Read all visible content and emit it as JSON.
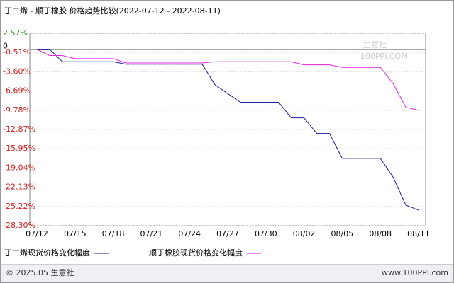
{
  "chart_data": {
    "type": "line",
    "title": "丁二烯 - 顺丁橡胶 价格趋势比较(2022-07-12 - 2022-08-11)",
    "categories": [
      "07/12",
      null,
      null,
      "07/15",
      null,
      null,
      "07/18",
      null,
      null,
      "07/21",
      null,
      null,
      "07/24",
      null,
      null,
      "07/27",
      null,
      null,
      "07/30",
      null,
      null,
      "08/02",
      null,
      null,
      "08/05",
      null,
      null,
      "08/08",
      null,
      null,
      "08/11"
    ],
    "series": [
      {
        "name": "丁二烯现货价格变化幅度",
        "color": "#1a1a9c",
        "values": [
          0,
          0,
          -2.0,
          -2.0,
          -2.0,
          -2.0,
          -2.0,
          -2.4,
          -2.4,
          -2.4,
          -2.4,
          -2.4,
          -2.4,
          -2.4,
          -5.7,
          -7.1,
          -8.5,
          -8.5,
          -8.5,
          -8.5,
          -11.0,
          -11.0,
          -13.5,
          -13.5,
          -17.5,
          -17.5,
          -17.5,
          -17.5,
          -20.5,
          -25.0,
          -25.8
        ]
      },
      {
        "name": "顺丁橡胶现货价格变化幅度",
        "color": "#e020e0",
        "values": [
          0,
          -1.0,
          -1.0,
          -1.5,
          -1.5,
          -1.5,
          -1.5,
          -2.2,
          -2.2,
          -2.2,
          -2.2,
          -2.2,
          -2.2,
          -2.2,
          -2.0,
          -2.0,
          -2.0,
          -2.0,
          -2.0,
          -2.0,
          -2.0,
          -2.5,
          -2.5,
          -2.5,
          -2.9,
          -2.9,
          -2.9,
          -2.9,
          -5.5,
          -9.3,
          -9.8
        ]
      }
    ],
    "ylim": [
      -28.3,
      2.57
    ],
    "yticks": [
      {
        "value": 2.57,
        "label": "2.57%"
      },
      {
        "value": -0.51,
        "label": "-0.51%"
      },
      {
        "value": -3.6,
        "label": "-3.60%"
      },
      {
        "value": -6.69,
        "label": "-6.69%"
      },
      {
        "value": -9.78,
        "label": "-9.78%"
      },
      {
        "value": -12.87,
        "label": "-12.87%"
      },
      {
        "value": -15.95,
        "label": "-15.95%"
      },
      {
        "value": -19.04,
        "label": "-19.04%"
      },
      {
        "value": -22.13,
        "label": "-22.13%"
      },
      {
        "value": -25.22,
        "label": "-25.22%"
      },
      {
        "value": -28.3,
        "label": "-28.30%"
      }
    ],
    "zero_tick": 0,
    "grid": true,
    "watermark": [
      "生意社",
      "100PPI.COM"
    ],
    "footer": {
      "left": "© 2025.05 生意社",
      "right": "www.100PPI.com"
    }
  }
}
